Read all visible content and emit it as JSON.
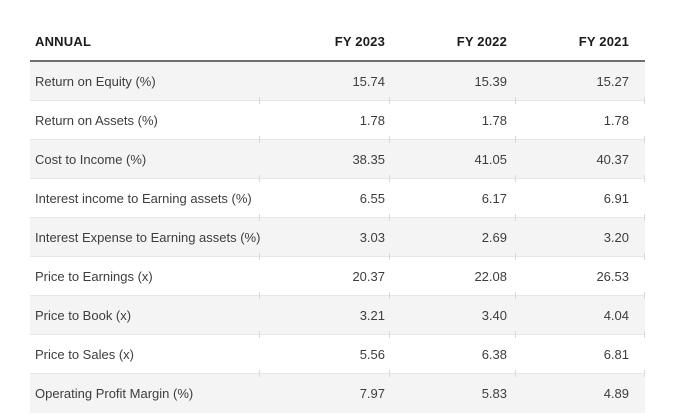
{
  "chart_data": {
    "type": "table",
    "title": "ANNUAL",
    "columns": [
      "FY 2023",
      "FY 2022",
      "FY 2021"
    ],
    "rows": [
      {
        "label": "Return on Equity (%)",
        "values": [
          "15.74",
          "15.39",
          "15.27"
        ]
      },
      {
        "label": "Return on Assets (%)",
        "values": [
          "1.78",
          "1.78",
          "1.78"
        ]
      },
      {
        "label": "Cost to Income (%)",
        "values": [
          "38.35",
          "41.05",
          "40.37"
        ]
      },
      {
        "label": "Interest income to Earning assets (%)",
        "values": [
          "6.55",
          "6.17",
          "6.91"
        ]
      },
      {
        "label": "Interest Expense to Earning assets (%)",
        "values": [
          "3.03",
          "2.69",
          "3.20"
        ]
      },
      {
        "label": "Price to Earnings (x)",
        "values": [
          "20.37",
          "22.08",
          "26.53"
        ]
      },
      {
        "label": "Price to Book (x)",
        "values": [
          "3.21",
          "3.40",
          "4.04"
        ]
      },
      {
        "label": "Price to Sales (x)",
        "values": [
          "5.56",
          "6.38",
          "6.81"
        ]
      },
      {
        "label": "Operating Profit Margin (%)",
        "values": [
          "7.97",
          "5.83",
          "4.89"
        ]
      }
    ],
    "layout": {
      "stripe_color": "#f4f4f4",
      "row_border_color": "#e7e7e7",
      "header_rule_color": "#6f6f6f",
      "header_text_color": "#1c1c1c",
      "body_text_color": "#3d3d3d",
      "value_alignment": "right",
      "zebra": "odd-rows-gray"
    }
  }
}
